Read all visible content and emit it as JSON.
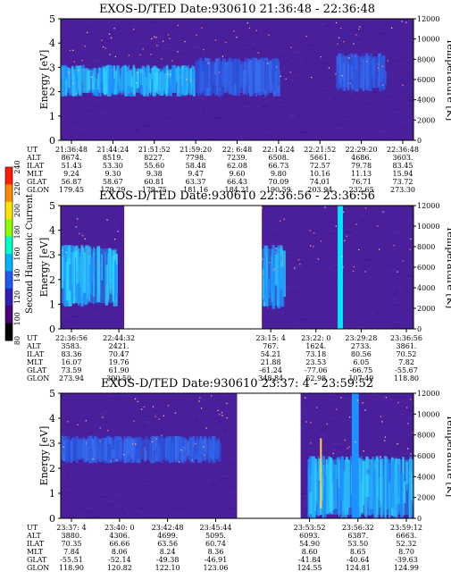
{
  "chart_data": [
    {
      "type": "heatmap",
      "title": "EXOS-D/TED   Date:930610  21:36:48 - 22:36:48",
      "ylabel": "Energy [eV]",
      "ylabel_right": "Temperature [K]",
      "ylim": [
        0,
        5
      ],
      "ylim_right": [
        0,
        12000
      ],
      "yticks": [
        "0",
        "1",
        "2",
        "3",
        "4",
        "5"
      ],
      "yticks_right": [
        "0",
        "2000",
        "4000",
        "6000",
        "8000",
        "10000",
        "12000"
      ],
      "ephemeris": {
        "labels": [
          "UT",
          "ALT",
          "ILAT",
          "MLT",
          "GLAT",
          "GLON"
        ],
        "columns": [
          [
            "21:36:48",
            "8674.",
            "51.43",
            "9.24",
            "56.87",
            "179.45"
          ],
          [
            "21:44:24",
            "8519.",
            "53.30",
            "9.30",
            "58.67",
            "179.29"
          ],
          [
            "21:51:52",
            "8227.",
            "55.60",
            "9.38",
            "60.81",
            "179.75"
          ],
          [
            "21:59:20",
            "7798.",
            "58.48",
            "9.47",
            "63.37",
            "181.16"
          ],
          [
            "22: 6:48",
            "7239.",
            "62.08",
            "9.60",
            "66.43",
            "184.21"
          ],
          [
            "22:14:24",
            "6508.",
            "66.73",
            "9.80",
            "70.09",
            "190.59"
          ],
          [
            "22:21:52",
            "5661.",
            "72.57",
            "10.16",
            "74.01",
            "203.94"
          ],
          [
            "22:29:20",
            "4686.",
            "79.78",
            "11.13",
            "76.71",
            "232.65"
          ],
          [
            "22:36:48",
            "3603.",
            "83.45",
            "15.94",
            "73.72",
            "273.30"
          ]
        ]
      },
      "data_gaps": [],
      "features": [
        {
          "type": "band",
          "t_start": 0.0,
          "t_end": 0.38,
          "e_low": 1.8,
          "e_high": 3.1,
          "level": "high"
        },
        {
          "type": "band",
          "t_start": 0.38,
          "t_end": 0.62,
          "e_low": 1.8,
          "e_high": 3.4,
          "level": "medium"
        },
        {
          "type": "blob",
          "t_start": 0.78,
          "t_end": 0.92,
          "e_low": 2.0,
          "e_high": 3.6,
          "level": "medium"
        }
      ]
    },
    {
      "type": "heatmap",
      "title": "EXOS-D/TED   Date:930610  22:36:56 - 23:36:56",
      "ylabel": "Energy [eV]",
      "ylabel_right": "Temperature [K]",
      "ylim": [
        0,
        5
      ],
      "ylim_right": [
        0,
        12000
      ],
      "yticks": [
        "0",
        "1",
        "2",
        "3",
        "4",
        "5"
      ],
      "yticks_right": [
        "0",
        "2000",
        "4000",
        "6000",
        "8000",
        "10000",
        "12000"
      ],
      "ephemeris": {
        "labels": [
          "UT",
          "ALT",
          "ILAT",
          "MLT",
          "GLAT",
          "GLON"
        ],
        "columns": [
          [
            "22:36:56",
            "3583.",
            "83.36",
            "16.07",
            "73.59",
            "273.94"
          ],
          [
            "22:44:32",
            "2421.",
            "70.47",
            "19.76",
            "61.90",
            "300.50"
          ],
          [
            "23:15: 4",
            "767.",
            "54.21",
            "21.88",
            "-61.24",
            "348.84"
          ],
          [
            "23:22: 0",
            "1624.",
            "73.18",
            "23.53",
            "-77.06",
            "52.98"
          ],
          [
            "23:29:28",
            "2733.",
            "80.56",
            "6.05",
            "-66.75",
            "107.49"
          ],
          [
            "23:36:56",
            "3861.",
            "70.52",
            "7.82",
            "-55.67",
            "118.80"
          ]
        ]
      },
      "data_gaps": [
        [
          0.18,
          0.57
        ]
      ],
      "features": [
        {
          "type": "band",
          "t_start": 0.0,
          "t_end": 0.16,
          "e_low": 0.9,
          "e_high": 3.4,
          "level": "high"
        },
        {
          "type": "blob",
          "t_start": 0.57,
          "t_end": 0.63,
          "e_low": 0.8,
          "e_high": 3.4,
          "level": "high"
        },
        {
          "type": "spike",
          "t_start": 0.785,
          "t_end": 0.8,
          "e_low": 0.0,
          "e_high": 5.0,
          "level": "peak"
        }
      ]
    },
    {
      "type": "heatmap",
      "title": "EXOS-D/TED   Date:930610  23:37: 4 - 23:59:52",
      "ylabel": "Energy [eV]",
      "ylabel_right": "Temperature [K]",
      "ylim": [
        0,
        5
      ],
      "ylim_right": [
        0,
        12000
      ],
      "yticks": [
        "0",
        "1",
        "2",
        "3",
        "4",
        "5"
      ],
      "yticks_right": [
        "0",
        "2000",
        "4000",
        "6000",
        "8000",
        "10000",
        "12000"
      ],
      "ephemeris": {
        "labels": [
          "UT",
          "ALT",
          "ILAT",
          "MLT",
          "GLAT",
          "GLON"
        ],
        "columns": [
          [
            "23:37: 4",
            "3880.",
            "70.35",
            "7.84",
            "-55.51",
            "118.90"
          ],
          [
            "23:40: 0",
            "4306.",
            "66.66",
            "8.06",
            "-52.14",
            "120.82"
          ],
          [
            "23:42:48",
            "4699.",
            "63.56",
            "8.24",
            "-49.38",
            "122.10"
          ],
          [
            "23:45:44",
            "5095.",
            "60.74",
            "8.36",
            "-46.91",
            "123.06"
          ],
          [
            "23:53:52",
            "6093.",
            "54.90",
            "8.60",
            "-41.84",
            "124.55"
          ],
          [
            "23:56:32",
            "6387.",
            "53.50",
            "8.65",
            "-40.64",
            "124.81"
          ],
          [
            "23:59:12",
            "6663.",
            "52.32",
            "8.70",
            "-39.63",
            "124.99"
          ]
        ]
      },
      "data_gaps": [
        [
          0.5,
          0.68
        ]
      ],
      "features": [
        {
          "type": "band",
          "t_start": 0.0,
          "t_end": 0.45,
          "e_low": 2.2,
          "e_high": 3.3,
          "level": "medium"
        },
        {
          "type": "blob",
          "t_start": 0.7,
          "t_end": 1.0,
          "e_low": 0.0,
          "e_high": 2.5,
          "level": "high"
        },
        {
          "type": "spike",
          "t_start": 0.825,
          "t_end": 0.845,
          "e_low": 0.0,
          "e_high": 5.0,
          "level": "high"
        }
      ]
    }
  ],
  "colorbar": {
    "label": "Second Harmonic Current",
    "ticks": [
      "80",
      "100",
      "120",
      "140",
      "160",
      "180",
      "200",
      "220",
      "240"
    ],
    "colors": [
      "#000000",
      "#4b007a",
      "#2f1fb5",
      "#1e5cf0",
      "#00b4ff",
      "#00ffc8",
      "#8cff00",
      "#ffe600",
      "#ff8c00",
      "#ff1a00"
    ]
  }
}
